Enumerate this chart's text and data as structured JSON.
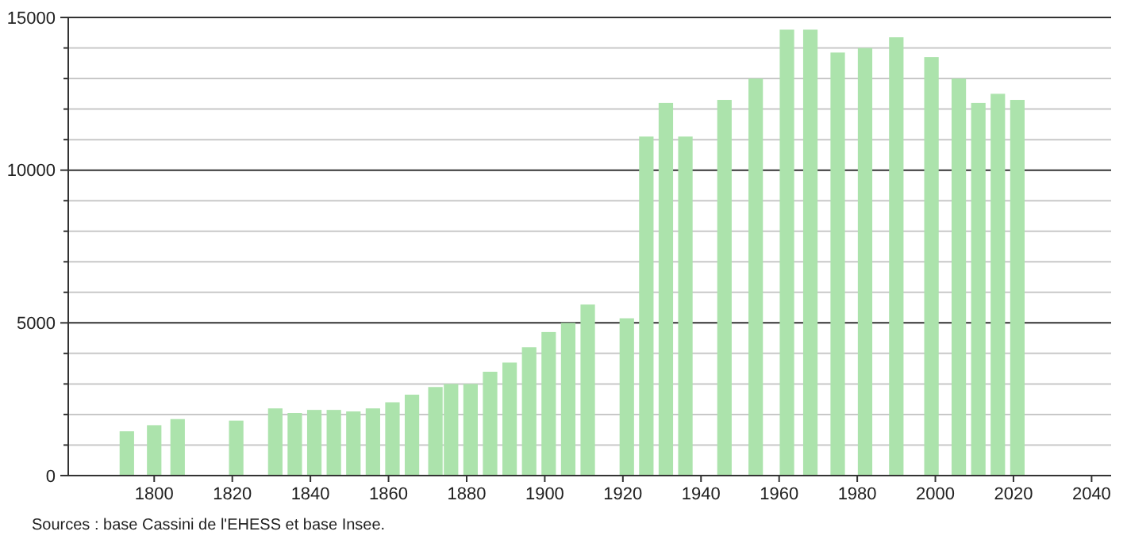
{
  "chart_data": {
    "type": "bar",
    "x": [
      1793,
      1800,
      1806,
      1821,
      1831,
      1836,
      1841,
      1846,
      1851,
      1856,
      1861,
      1866,
      1872,
      1876,
      1881,
      1886,
      1891,
      1896,
      1901,
      1906,
      1911,
      1921,
      1926,
      1931,
      1936,
      1946,
      1954,
      1962,
      1968,
      1975,
      1982,
      1990,
      1999,
      2006,
      2011,
      2016,
      2021
    ],
    "values": [
      1450,
      1650,
      1850,
      1800,
      2200,
      2050,
      2150,
      2150,
      2100,
      2200,
      2400,
      2650,
      2900,
      3000,
      3000,
      3400,
      3700,
      4200,
      4700,
      5000,
      5600,
      5150,
      11100,
      12200,
      11100,
      12300,
      13000,
      14600,
      14600,
      13850,
      14000,
      14350,
      13700,
      13000,
      12200,
      12500,
      12300
    ],
    "color": "#ace3ac",
    "xlim": [
      1778,
      2045
    ],
    "xticks": [
      1800,
      1820,
      1840,
      1860,
      1880,
      1900,
      1920,
      1940,
      1960,
      1980,
      2000,
      2020,
      2040
    ],
    "ylim": [
      0,
      15000
    ],
    "yticks": [
      0,
      {
        "value": 1000,
        "label": null
      },
      {
        "value": 2000,
        "label": null
      },
      {
        "value": 3000,
        "label": null
      },
      {
        "value": 4000,
        "label": null
      },
      5000,
      {
        "value": 6000,
        "label": null
      },
      {
        "value": 7000,
        "label": null
      },
      {
        "value": 8000,
        "label": null
      },
      {
        "value": 9000,
        "label": null
      },
      10000,
      {
        "value": 11000,
        "label": null
      },
      {
        "value": 12000,
        "label": null
      },
      {
        "value": 13000,
        "label": null
      },
      {
        "value": 14000,
        "label": null
      },
      15000
    ],
    "grid": "y",
    "annotations": [
      "Sources : base Cassini de l'EHESS et base Insee."
    ]
  }
}
